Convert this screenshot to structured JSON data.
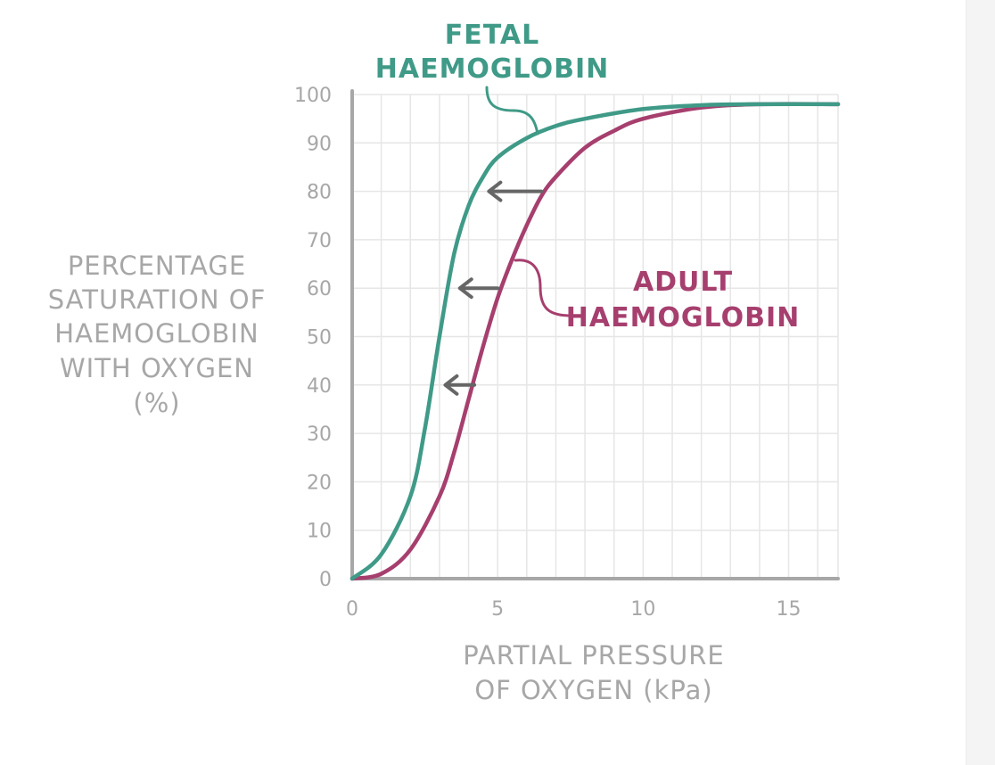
{
  "chart_data": {
    "type": "line",
    "ylabel_lines": [
      "PERCENTAGE",
      "SATURATION OF",
      "HAEMOGLOBIN",
      "WITH OXYGEN",
      "(%)"
    ],
    "xlabel_lines": [
      "PARTIAL PRESSURE",
      "OF OXYGEN (kPa)"
    ],
    "xlim": [
      0,
      16.7
    ],
    "ylim": [
      0,
      100
    ],
    "x_ticks": [
      0,
      5,
      10,
      15
    ],
    "y_ticks": [
      0,
      10,
      20,
      30,
      40,
      50,
      60,
      70,
      80,
      90,
      100
    ],
    "x_tick_labels": [
      "0",
      "5",
      "10",
      "15"
    ],
    "y_tick_labels": [
      "0",
      "10",
      "20",
      "30",
      "40",
      "50",
      "60",
      "70",
      "80",
      "90",
      "100"
    ],
    "grid": true,
    "series": [
      {
        "name": "FETAL HAEMOGLOBIN",
        "label_lines": [
          "FETAL",
          "HAEMOGLOBIN"
        ],
        "color": "#3f9a87",
        "x": [
          0,
          1,
          2,
          2.5,
          3,
          3.5,
          4,
          4.5,
          5,
          6,
          7,
          8,
          10,
          12,
          14,
          16.7
        ],
        "y": [
          0,
          5,
          17,
          31,
          50,
          67,
          77,
          83,
          87,
          91,
          93.5,
          95,
          97,
          97.8,
          98,
          98
        ]
      },
      {
        "name": "ADULT HAEMOGLOBIN",
        "label_lines": [
          "ADULT",
          "HAEMOGLOBIN"
        ],
        "color": "#a63f6e",
        "x": [
          0,
          1,
          2,
          3,
          3.5,
          4,
          4.5,
          5,
          5.5,
          6,
          6.5,
          7,
          8,
          9,
          10,
          12,
          14,
          16.7
        ],
        "y": [
          0,
          1,
          6,
          17,
          26,
          37,
          48,
          58,
          66,
          73,
          79,
          83,
          89,
          92.5,
          95,
          97.3,
          98,
          98
        ]
      }
    ],
    "shift_arrows": [
      {
        "y": 80,
        "from_x": 6.5,
        "to_x": 4.7
      },
      {
        "y": 60,
        "from_x": 5.0,
        "to_x": 3.7
      },
      {
        "y": 40,
        "from_x": 4.2,
        "to_x": 3.2
      }
    ],
    "colors": {
      "axis": "#a7a7a7",
      "grid": "#e6e6e6",
      "tick_text": "#a7a7a7",
      "label_text": "#a7a7a7",
      "arrow": "#666666"
    }
  }
}
